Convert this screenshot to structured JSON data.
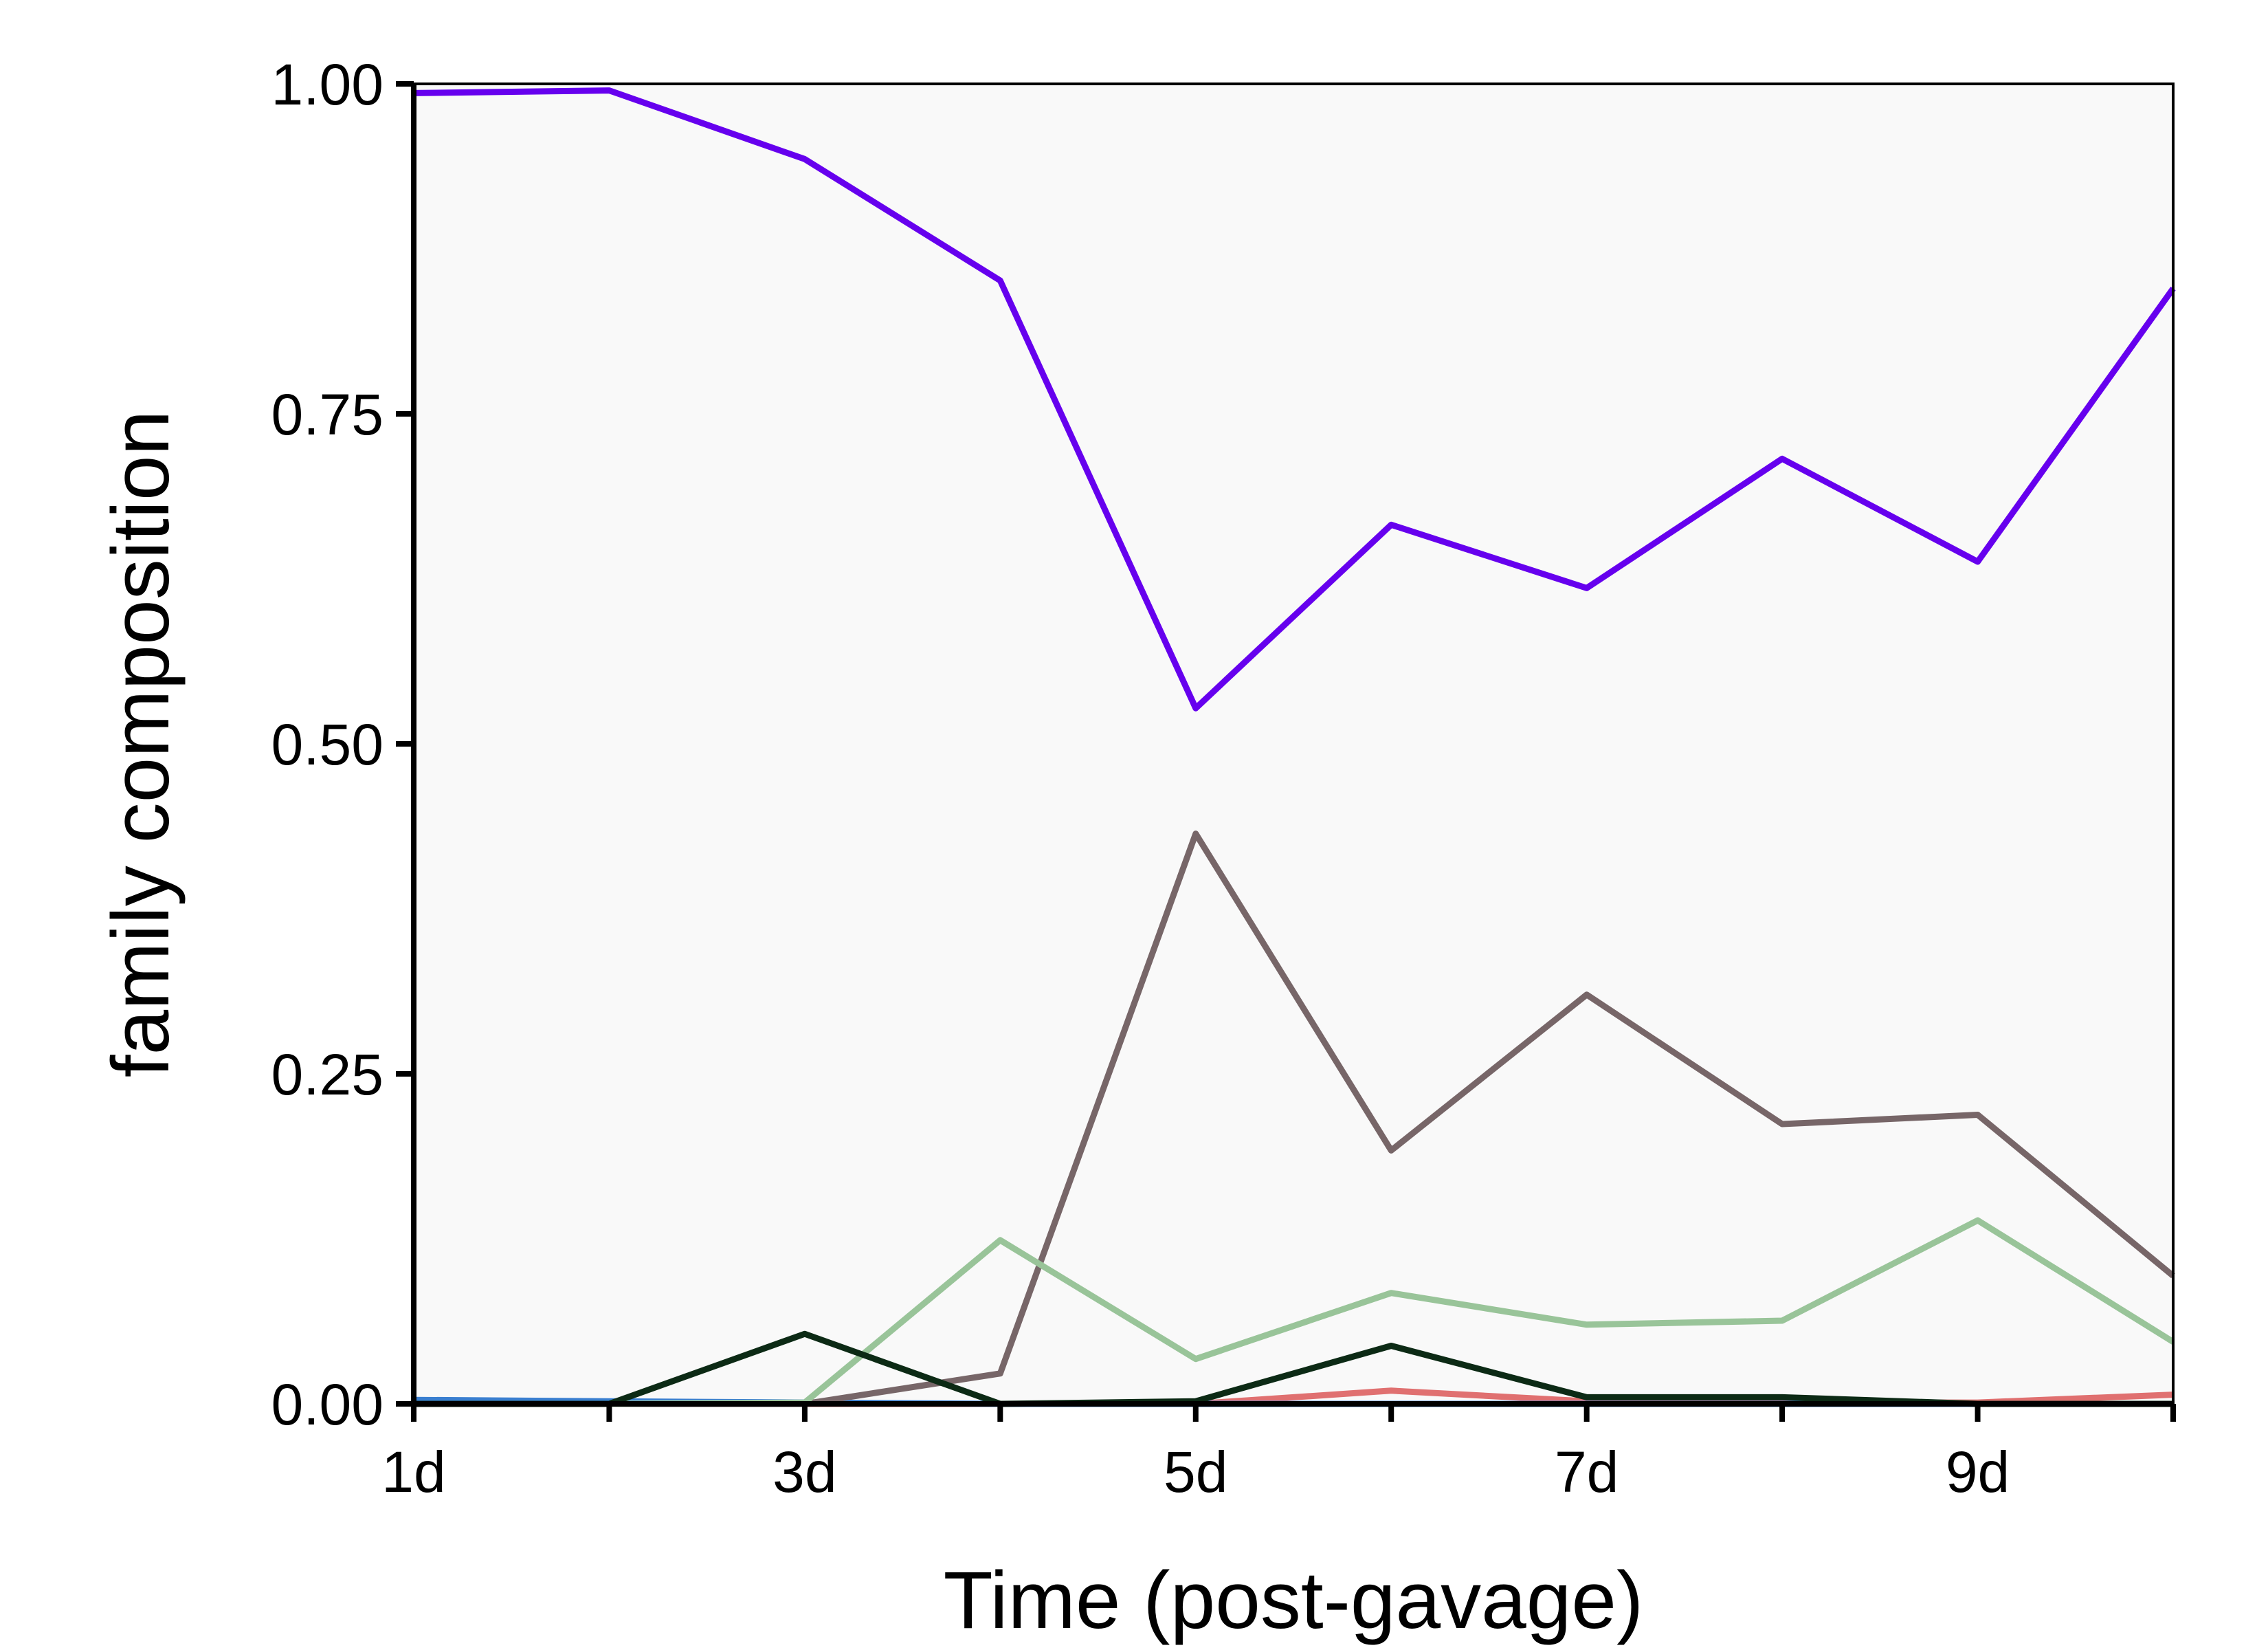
{
  "chart_data": {
    "type": "line",
    "title": "",
    "xlabel": "Time (post-gavage)",
    "ylabel": "family composition",
    "x": [
      1,
      2,
      3,
      4,
      5,
      6,
      7,
      8,
      9,
      10
    ],
    "xlim": [
      1,
      10
    ],
    "ylim": [
      0,
      1
    ],
    "x_ticks": [
      {
        "value": 1,
        "label": "1d"
      },
      {
        "value": 3,
        "label": "3d"
      },
      {
        "value": 5,
        "label": "5d"
      },
      {
        "value": 7,
        "label": "7d"
      },
      {
        "value": 9,
        "label": "9d"
      }
    ],
    "x_minor_ticks": [
      2,
      4,
      6,
      8,
      10
    ],
    "y_ticks": [
      {
        "value": 0,
        "label": "0.00"
      },
      {
        "value": 0.25,
        "label": "0.25"
      },
      {
        "value": 0.5,
        "label": "0.50"
      },
      {
        "value": 0.75,
        "label": "0.75"
      },
      {
        "value": 1,
        "label": "1.00"
      }
    ],
    "grid": false,
    "legend": "none",
    "background": "#f9f9f9",
    "series": [
      {
        "color": "#e07070",
        "values": [
          0,
          0,
          0,
          0,
          0,
          0.01,
          0.002,
          0.001,
          0.001,
          0.007
        ]
      },
      {
        "color": "#3a7fd0",
        "values": [
          0.003,
          0.002,
          0.001,
          0,
          0,
          0,
          0,
          0,
          0,
          0
        ]
      },
      {
        "color": "#776668",
        "values": [
          0,
          0,
          0,
          0.023,
          0.432,
          0.192,
          0.31,
          0.212,
          0.219,
          0.097
        ]
      },
      {
        "color": "#99c499",
        "values": [
          0,
          0,
          0.001,
          0.124,
          0.034,
          0.084,
          0.06,
          0.063,
          0.139,
          0.047
        ]
      },
      {
        "color": "#0c2a15",
        "values": [
          0,
          0,
          0.053,
          0,
          0.002,
          0.044,
          0.005,
          0.005,
          0,
          0
        ]
      },
      {
        "color": "#6600ee",
        "values": [
          0.993,
          0.995,
          0.943,
          0.851,
          0.527,
          0.666,
          0.618,
          0.716,
          0.638,
          0.845
        ]
      }
    ]
  }
}
